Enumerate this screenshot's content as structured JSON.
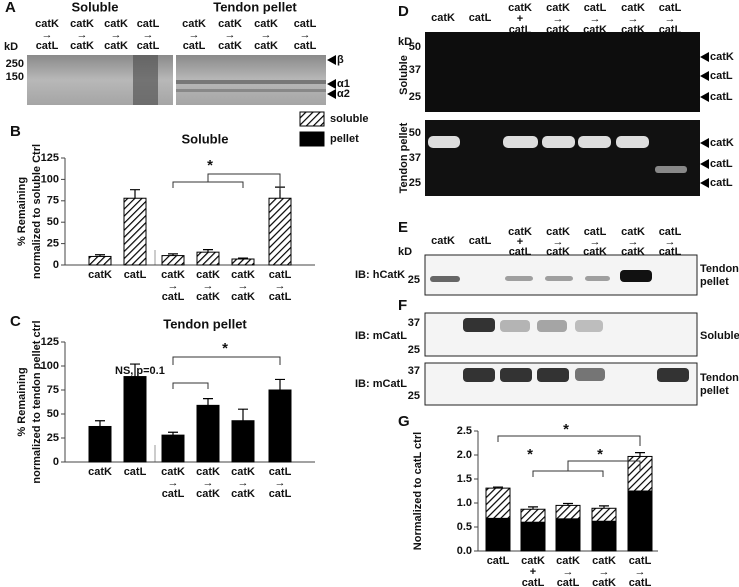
{
  "panel_labels": [
    "A",
    "B",
    "C",
    "D",
    "E",
    "F",
    "G"
  ],
  "gel_a": {
    "groups": [
      "Soluble",
      "Tendon pellet"
    ],
    "lanes": [
      "catK → catL",
      "catK → catK",
      "catK → catK",
      "catL → catL",
      "catK → catL",
      "catK → catK",
      "catK → catK",
      "catL → catL"
    ],
    "kd_label": "kD",
    "markers": [
      "250",
      "150"
    ],
    "bands": [
      "β",
      "α1",
      "α2"
    ]
  },
  "gel_d": {
    "lanes": [
      "catK",
      "catL",
      "catK + catL",
      "catK → catK",
      "catL → catK",
      "catK → catK",
      "catL → catL"
    ],
    "kd_label": "kD",
    "rows": [
      {
        "label": "Soluble",
        "markers": [
          "50",
          "37",
          "25"
        ],
        "bands": [
          "catK",
          "catL",
          "catL"
        ]
      },
      {
        "label": "Tendon pellet",
        "markers": [
          "50",
          "37",
          "25"
        ],
        "bands": [
          "catK",
          "catL",
          "catL"
        ]
      }
    ]
  },
  "blots_ef": {
    "lanes": [
      "catK",
      "catL",
      "catK + catL",
      "catK → catK",
      "catL → catK",
      "catK → catK",
      "catL → catL"
    ],
    "kd_label": "kD",
    "blots": [
      {
        "antibody": "IB: hCatK",
        "markers": [
          "25"
        ],
        "fraction": "Tendon pellet"
      },
      {
        "antibody": "IB: mCatL",
        "markers": [
          "37",
          "25"
        ],
        "fraction": "Soluble"
      },
      {
        "antibody": "IB: mCatL",
        "markers": [
          "37",
          "25"
        ],
        "fraction": "Tendon pellet"
      }
    ]
  },
  "chart_data": [
    {
      "type": "bar",
      "title": "Soluble",
      "ylabel": [
        "% Remaining",
        "normalized to soluble Ctrl"
      ],
      "categories": [
        "catK",
        "catL",
        "catK → catL",
        "catK → catK",
        "catK → catK",
        "catL → catL"
      ],
      "series": [
        {
          "name": "soluble",
          "color": "#000000",
          "hatched": true,
          "values": [
            10,
            78,
            11,
            15,
            7,
            78
          ],
          "errors": [
            2,
            10,
            2,
            3,
            1,
            13
          ]
        }
      ],
      "ylim": [
        0,
        125
      ],
      "yticks": [
        0,
        25,
        50,
        75,
        100,
        125
      ],
      "annotations": [
        "*"
      ]
    },
    {
      "type": "bar",
      "title": "Tendon pellet",
      "ylabel": [
        "% Remaining",
        "normalized to tendon pellet ctrl"
      ],
      "categories": [
        "catK",
        "catL",
        "catK → catL",
        "catK → catK",
        "catK → catK",
        "catL → catL"
      ],
      "series": [
        {
          "name": "pellet",
          "color": "#000000",
          "hatched": false,
          "values": [
            37,
            89,
            28,
            59,
            43,
            75
          ],
          "errors": [
            6,
            13,
            3,
            7,
            12,
            11
          ]
        }
      ],
      "ylim": [
        0,
        125
      ],
      "yticks": [
        0,
        25,
        50,
        75,
        100,
        125
      ],
      "annotations": [
        "NS, p=0.1",
        "*"
      ]
    },
    {
      "type": "stacked_bar",
      "ylabel": [
        "Normalized to catL ctrl"
      ],
      "categories": [
        "catL",
        "catK + catL",
        "catK → catL",
        "catK → catK",
        "catL → catL"
      ],
      "series": [
        {
          "color": "#000000",
          "hatched": false,
          "values": [
            0.68,
            0.6,
            0.67,
            0.62,
            1.25
          ]
        },
        {
          "color": "#000000",
          "hatched": true,
          "values": [
            0.63,
            0.27,
            0.28,
            0.27,
            0.72
          ],
          "errors": [
            0.02,
            0.05,
            0.04,
            0.05,
            0.08
          ]
        }
      ],
      "ylim": [
        0,
        2.5
      ],
      "yticks": [
        {
          "value": 0,
          "label": "0.0"
        },
        0.5,
        {
          "value": 1,
          "label": "1.0"
        },
        1.5,
        {
          "value": 2,
          "label": "2.0"
        },
        2.5
      ],
      "annotations": [
        "*",
        "*",
        "*"
      ]
    }
  ]
}
